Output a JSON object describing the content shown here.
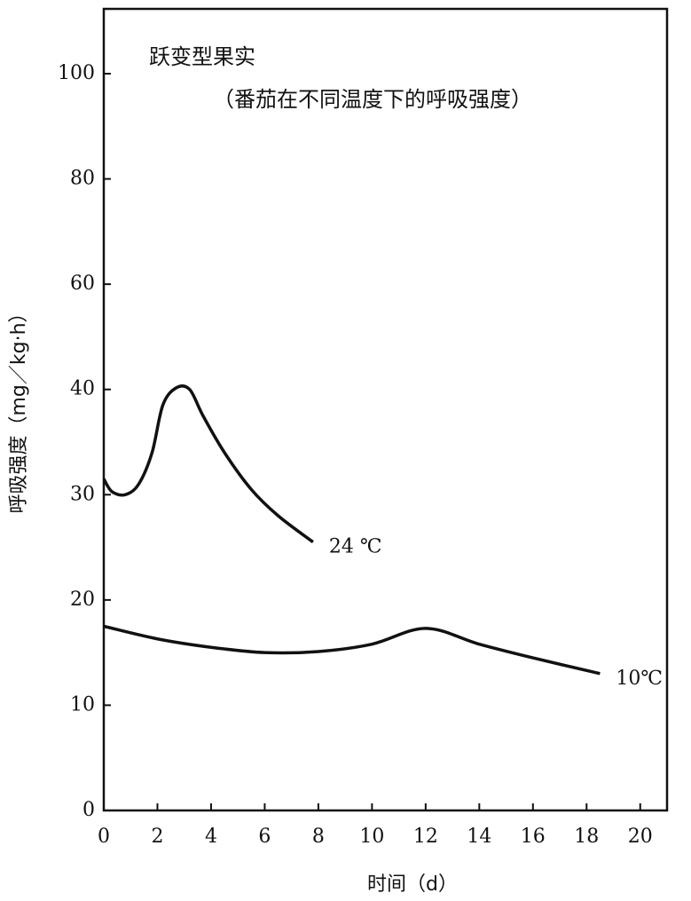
{
  "chart_data": {
    "type": "line",
    "title": "跃变型果实",
    "subtitle": "（番茄在不同温度下的呼吸强度）",
    "x_label": "时间（d）",
    "y_label": "呼吸强度（mg／kg·h）",
    "xlim": [
      0,
      21
    ],
    "xticks": [
      0,
      2,
      4,
      6,
      8,
      10,
      12,
      14,
      16,
      18,
      20
    ],
    "ylim": [
      0,
      112
    ],
    "yticks": [
      0,
      10,
      20,
      30,
      40,
      60,
      80,
      100
    ],
    "series": [
      {
        "name": "24 ℃",
        "color": "#111111",
        "x": [
          0,
          0.3,
          0.8,
          1.3,
          1.8,
          2.2,
          2.7,
          3.2,
          3.7,
          4.5,
          5.5,
          6.5,
          7.8
        ],
        "values": [
          31.5,
          30.3,
          30,
          31,
          34,
          38.5,
          40.3,
          40,
          37.5,
          34,
          30.5,
          28,
          25.5
        ]
      },
      {
        "name": "10℃",
        "color": "#111111",
        "x": [
          0,
          2,
          4,
          6,
          8,
          10,
          12,
          14,
          16,
          18.5
        ],
        "values": [
          17.5,
          16.3,
          15.5,
          15,
          15.1,
          15.8,
          17.3,
          15.8,
          14.5,
          13
        ]
      }
    ]
  }
}
